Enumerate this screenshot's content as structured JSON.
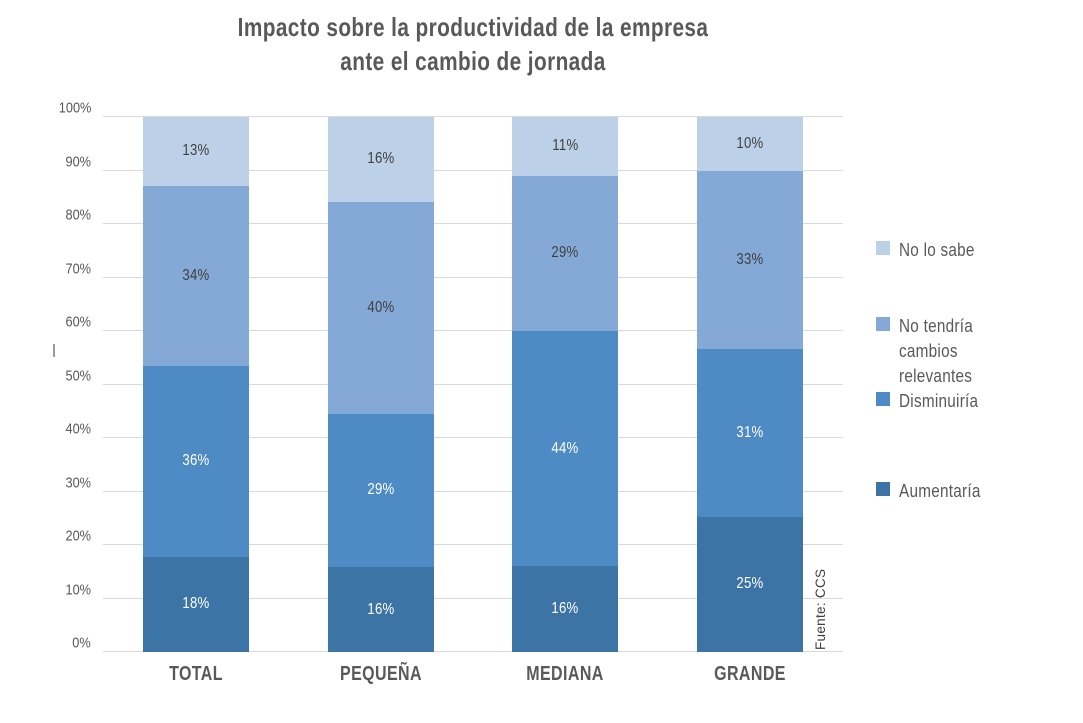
{
  "title": {
    "line1": "Impacto sobre la productividad de la empresa",
    "line2": "ante el cambio de jornada"
  },
  "source_note": "Fuente: CCS",
  "chart_data": {
    "type": "bar",
    "variant": "stacked-column-100pct",
    "title": "Impacto sobre la productividad de la empresa ante el cambio de jornada",
    "categories": [
      "TOTAL",
      "PEQUEÑA",
      "MEDIANA",
      "GRANDE"
    ],
    "series": [
      {
        "name": "Aumentaría",
        "color": "#3D74A6",
        "label_color": "#FFFFFF",
        "values": [
          18,
          16,
          16,
          25
        ]
      },
      {
        "name": "Disminuiría",
        "color": "#4E8AC4",
        "label_color": "#FFFFFF",
        "values": [
          36,
          29,
          44,
          31
        ]
      },
      {
        "name": "No tendría cambios relevantes",
        "color": "#84A9D6",
        "label_color": "#3F3F3F",
        "values": [
          34,
          40,
          29,
          33
        ]
      },
      {
        "name": "No lo sabe",
        "color": "#BCD0E8",
        "label_color": "#3F3F3F",
        "values": [
          13,
          16,
          11,
          10
        ]
      }
    ],
    "data_label_suffix": "%",
    "y_axis": {
      "min": 0,
      "max": 100,
      "step": 10,
      "ticks": [
        "0%",
        "10%",
        "20%",
        "30%",
        "40%",
        "50%",
        "60%",
        "70%",
        "80%",
        "90%",
        "100%"
      ]
    },
    "x_axis": {
      "labels": [
        "TOTAL",
        "PEQUEÑA",
        "MEDIANA",
        "GRANDE"
      ]
    },
    "legend": {
      "position": "right",
      "items": [
        "No lo sabe",
        "No tendría cambios relevantes",
        "Disminuiría",
        "Aumentaría"
      ]
    },
    "grid": true,
    "colors": {
      "grid": "#D9D9D9",
      "axis_text": "#595959",
      "title_text": "#595959",
      "background": "#FFFFFF"
    }
  }
}
